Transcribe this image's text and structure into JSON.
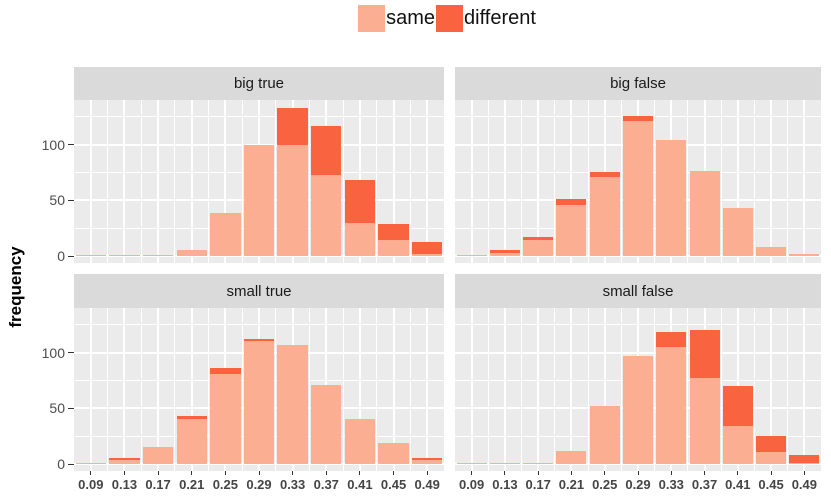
{
  "chart_data": {
    "type": "bar",
    "variant": "stacked-histogram",
    "title": "",
    "ylabel": "frequency",
    "xlabel": "",
    "grid": "on",
    "legend_position": "top",
    "ylim": [
      0,
      140
    ],
    "y_ticks": [
      0,
      50,
      100
    ],
    "y_minor_ticks": [
      25,
      75,
      125
    ],
    "categories": [
      "0.09",
      "0.13",
      "0.17",
      "0.21",
      "0.25",
      "0.29",
      "0.33",
      "0.37",
      "0.41",
      "0.45",
      "0.49"
    ],
    "legend": [
      {
        "label": "same",
        "color": "#FBAE91"
      },
      {
        "label": "different",
        "color": "#F9633F"
      }
    ],
    "colors": {
      "panel_bg": "#EBEBEB",
      "strip_bg": "#DADADA",
      "gridline": "#FFFFFF"
    },
    "facets": [
      {
        "title": "big true",
        "series": [
          {
            "name": "same",
            "values": [
              1,
              1,
              1,
              5,
              39,
              100,
              100,
              73,
              30,
              14,
              2
            ]
          },
          {
            "name": "different",
            "values": [
              0,
              0,
              0,
              0,
              0,
              0,
              33,
              44,
              38,
              15,
              11
            ]
          }
        ]
      },
      {
        "title": "big false",
        "series": [
          {
            "name": "same",
            "values": [
              1,
              3,
              14,
              46,
              71,
              121,
              104,
              76,
              43,
              8,
              2
            ]
          },
          {
            "name": "different",
            "values": [
              0,
              2,
              3,
              5,
              4,
              5,
              0,
              0,
              0,
              0,
              0
            ]
          }
        ]
      },
      {
        "title": "small true",
        "series": [
          {
            "name": "same",
            "values": [
              1,
              4,
              15,
              40,
              81,
              110,
              107,
              71,
              40,
              19,
              4
            ]
          },
          {
            "name": "different",
            "values": [
              0,
              1,
              0,
              3,
              5,
              2,
              0,
              0,
              0,
              0,
              1
            ]
          }
        ]
      },
      {
        "title": "small false",
        "series": [
          {
            "name": "same",
            "values": [
              1,
              1,
              1,
              12,
              52,
              97,
              105,
              77,
              34,
              11,
              1
            ]
          },
          {
            "name": "different",
            "values": [
              0,
              0,
              0,
              0,
              0,
              0,
              13,
              43,
              36,
              14,
              7
            ]
          }
        ]
      }
    ]
  }
}
